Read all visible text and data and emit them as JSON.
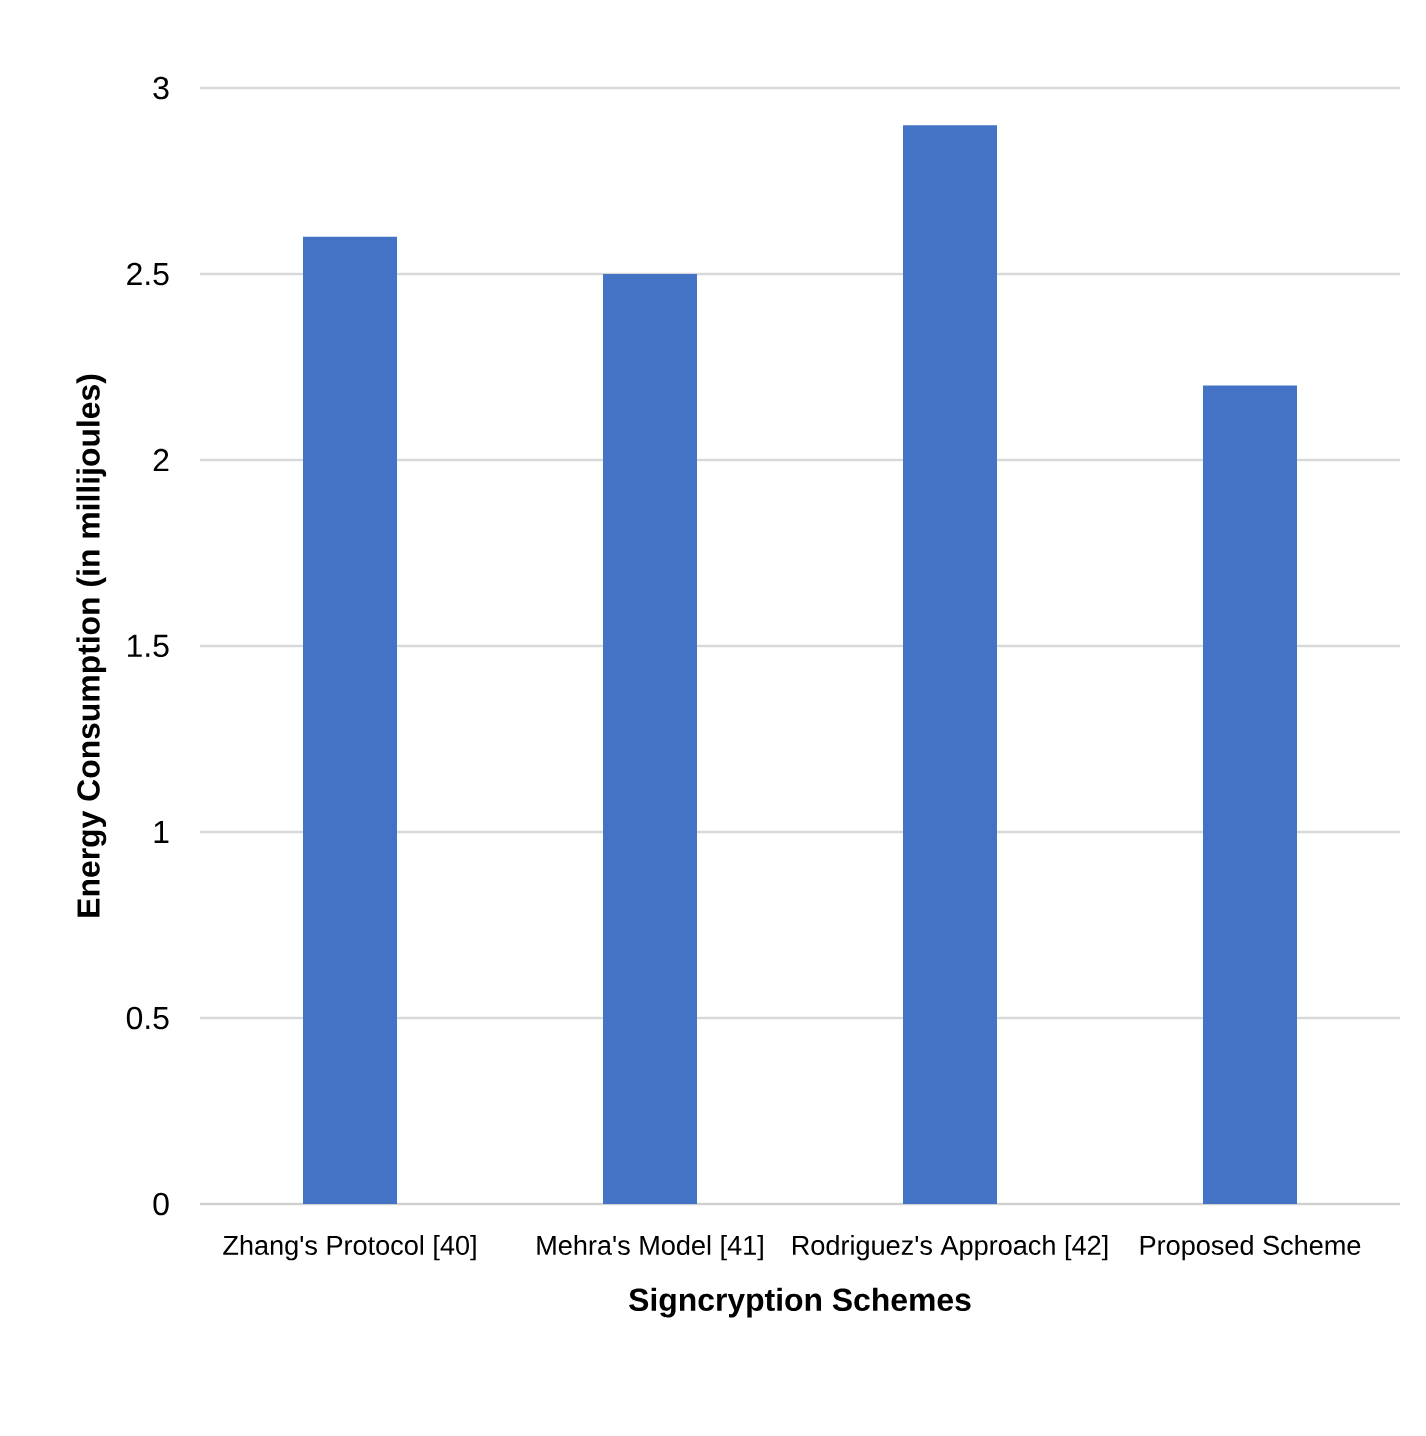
{
  "chart_data": {
    "type": "bar",
    "xlabel": "Signcryption Schemes",
    "ylabel": "Energy Consumption (in millijoules)",
    "categories": [
      "Zhang's Protocol [40]",
      "Mehra's Model [41]",
      "Rodriguez's Approach [42]",
      "Proposed Scheme"
    ],
    "values": [
      2.6,
      2.5,
      2.9,
      2.2
    ],
    "color": "#4472c4",
    "ylim": [
      0,
      3
    ],
    "yticks": [
      0,
      0.5,
      1,
      1.5,
      2,
      2.5,
      3
    ],
    "grid": "y"
  }
}
